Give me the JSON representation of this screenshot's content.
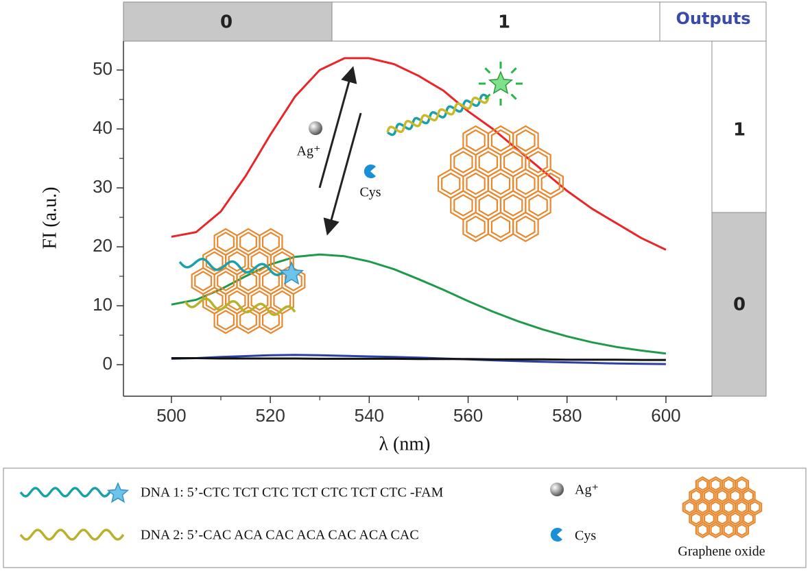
{
  "chart_data": {
    "type": "line",
    "input_labels": [
      "0",
      "1"
    ],
    "outputs_title": "Outputs",
    "output_labels": [
      "1",
      "0"
    ],
    "x_label": "λ (nm)",
    "y_label": "FI (a.u.)",
    "x": [
      500,
      505,
      510,
      515,
      520,
      525,
      530,
      535,
      540,
      545,
      550,
      555,
      560,
      565,
      570,
      575,
      580,
      585,
      590,
      595,
      600
    ],
    "series": [
      {
        "color": "#e8262a",
        "values": [
          21.7,
          22.5,
          26,
          32,
          39,
          45.5,
          50,
          52,
          52,
          51,
          49,
          46.5,
          43,
          40,
          36.5,
          33,
          29.5,
          26.5,
          24,
          21.5,
          19.5
        ]
      },
      {
        "color": "#1f9a4a",
        "values": [
          10.2,
          11,
          12.8,
          15,
          17,
          18.3,
          18.7,
          18.4,
          17.5,
          16.2,
          14.5,
          12.7,
          10.8,
          9,
          7.4,
          6,
          4.8,
          3.8,
          3,
          2.4,
          1.9
        ]
      },
      {
        "color": "#2a3fa0",
        "values": [
          1,
          1.1,
          1.3,
          1.45,
          1.6,
          1.65,
          1.6,
          1.5,
          1.4,
          1.3,
          1.2,
          1.05,
          0.9,
          0.75,
          0.6,
          0.5,
          0.4,
          0.3,
          0.2,
          0.15,
          0.1
        ]
      },
      {
        "color": "#111111",
        "values": [
          1.1,
          1.1,
          1.05,
          1.05,
          1.05,
          1.05,
          1,
          1,
          1,
          1,
          0.95,
          0.95,
          0.95,
          0.9,
          0.9,
          0.9,
          0.85,
          0.85,
          0.85,
          0.8,
          0.8
        ]
      }
    ],
    "xlim": [
      490.3,
      609.3
    ],
    "ylim": [
      -5.35,
      54.9
    ],
    "xticks": [
      500,
      520,
      540,
      560,
      580,
      600
    ],
    "yticks": [
      0,
      10,
      20,
      30,
      40,
      50
    ],
    "annotations": {
      "ag": "Ag⁺",
      "cys": "Cys"
    },
    "legend": {
      "dna1": "DNA 1: 5’-CTC TCT CTC TCT CTC TCT CTC -FAM",
      "dna2": "DNA 2: 5’-CAC ACA CAC ACA CAC ACA CAC",
      "ag": "Ag⁺",
      "cys": "Cys",
      "graphene": "Graphene oxide"
    }
  }
}
